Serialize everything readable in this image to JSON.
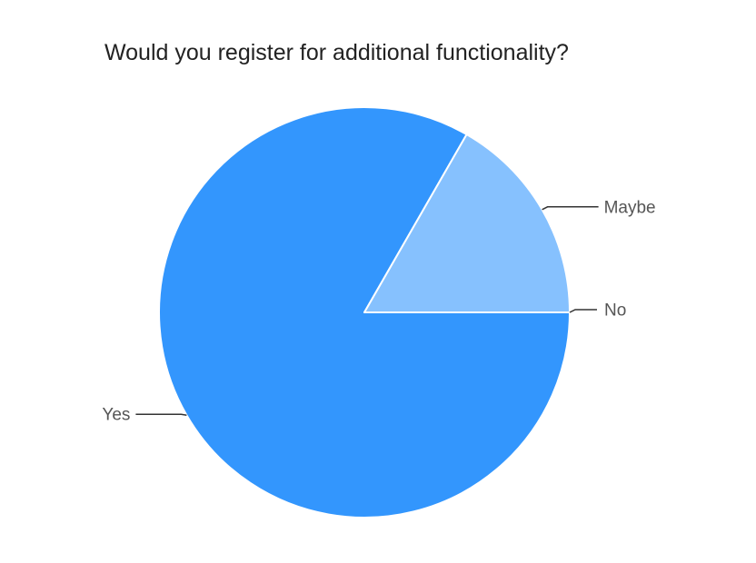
{
  "chart_data": {
    "type": "pie",
    "title": "Would you register for additional functionality?",
    "categories": [
      "Yes",
      "Maybe",
      "No"
    ],
    "values": [
      83.3,
      16.7,
      0
    ],
    "colors": [
      "#3396fd",
      "#86c1fe",
      "#3396fd"
    ],
    "label_color": "#555555",
    "slice_border_color": "#ffffff",
    "leader_line_color": "#333333"
  }
}
